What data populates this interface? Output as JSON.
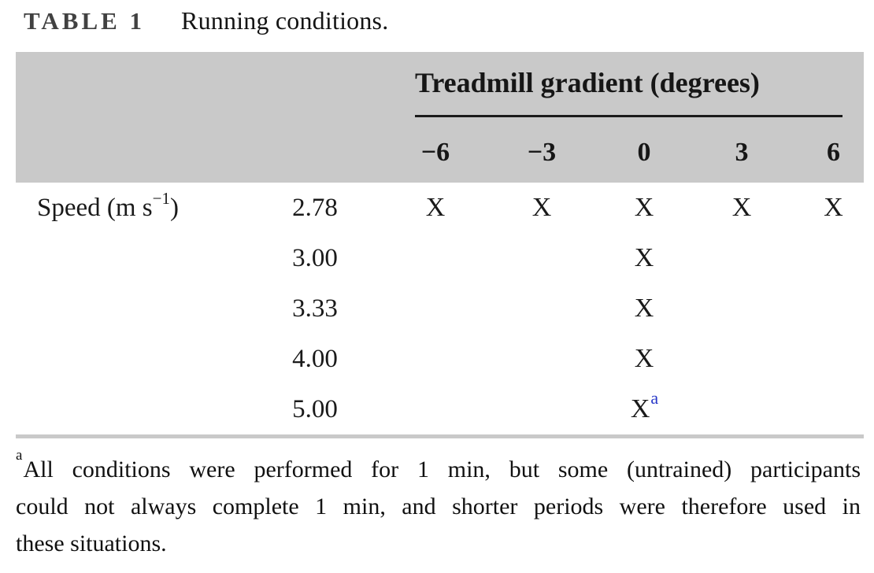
{
  "colors": {
    "header_background": "#c9c9c9",
    "rule_gray": "#c9c9c9",
    "underline_black": "#1a1a1a",
    "title_label_gray": "#414141",
    "footnote_superscript_blue": "#2737c8"
  },
  "title": {
    "label": "TABLE 1",
    "caption": "Running conditions."
  },
  "table": {
    "group_header": "Treadmill gradient (degrees)",
    "gradient_columns": [
      "−6",
      "−3",
      "0",
      "3",
      "6"
    ],
    "row_header": {
      "prefix": "Speed (m s",
      "superscript": "−1",
      "suffix": ")"
    },
    "rows": [
      {
        "speed": "2.78",
        "marks": [
          "X",
          "X",
          "X",
          "X",
          "X"
        ],
        "note": ""
      },
      {
        "speed": "3.00",
        "marks": [
          "",
          "",
          "X",
          "",
          ""
        ],
        "note": ""
      },
      {
        "speed": "3.33",
        "marks": [
          "",
          "",
          "X",
          "",
          ""
        ],
        "note": ""
      },
      {
        "speed": "4.00",
        "marks": [
          "",
          "",
          "X",
          "",
          ""
        ],
        "note": ""
      },
      {
        "speed": "5.00",
        "marks": [
          "",
          "",
          "X",
          "",
          ""
        ],
        "note": "a"
      }
    ]
  },
  "footnote": {
    "marker": "a",
    "lines": [
      "All conditions were performed for 1 min, but some (untrained) participants",
      "could not always complete 1 min, and shorter periods were therefore used in",
      "these situations."
    ]
  }
}
